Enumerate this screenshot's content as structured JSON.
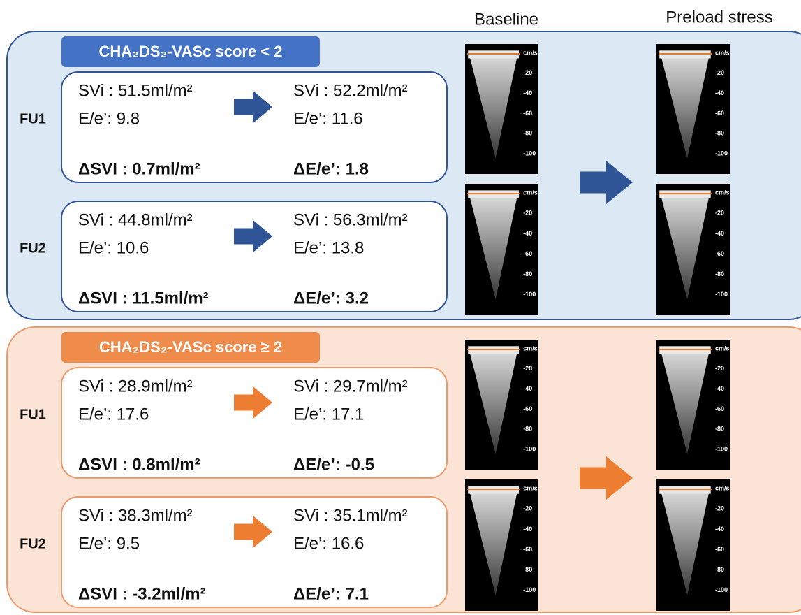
{
  "columns": [
    "Baseline",
    "Preload stress"
  ],
  "doppler_scale": [
    "cm/s",
    "-20",
    "-40",
    "-60",
    "-80",
    "-100"
  ],
  "groups": [
    {
      "title": "CHA₂DS₂-VASc score < 2",
      "rows": [
        {
          "label": "FU1",
          "baseline": {
            "svi": "SVi : 51.5ml/m²",
            "ee": "E/e’: 9.8"
          },
          "stress": {
            "svi": "SVi : 52.2ml/m²",
            "ee": "E/e’: 11.6"
          },
          "delta_svi": "ΔSVI : 0.7ml/m²",
          "delta_ee": "ΔE/e’: 1.8"
        },
        {
          "label": "FU2",
          "baseline": {
            "svi": "SVi : 44.8ml/m²",
            "ee": "E/e’: 10.6"
          },
          "stress": {
            "svi": "SVi : 56.3ml/m²",
            "ee": "E/e’: 13.8"
          },
          "delta_svi": "ΔSVI : 11.5ml/m²",
          "delta_ee": "ΔE/e’: 3.2"
        }
      ]
    },
    {
      "title": "CHA₂DS₂-VASc score ≥ 2",
      "rows": [
        {
          "label": "FU1",
          "baseline": {
            "svi": "SVi : 28.9ml/m²",
            "ee": "E/e’: 17.6"
          },
          "stress": {
            "svi": "SVi : 29.7ml/m²",
            "ee": "E/e’: 17.1"
          },
          "delta_svi": "ΔSVI : 0.8ml/m²",
          "delta_ee": "ΔE/e’: -0.5"
        },
        {
          "label": "FU2",
          "baseline": {
            "svi": "SVi : 38.3ml/m²",
            "ee": "E/e’: 9.5"
          },
          "stress": {
            "svi": "SVi : 35.1ml/m²",
            "ee": "E/e’: 16.6"
          },
          "delta_svi": "ΔSVI : -3.2ml/m²",
          "delta_ee": "ΔE/e’: 7.1"
        }
      ]
    }
  ]
}
